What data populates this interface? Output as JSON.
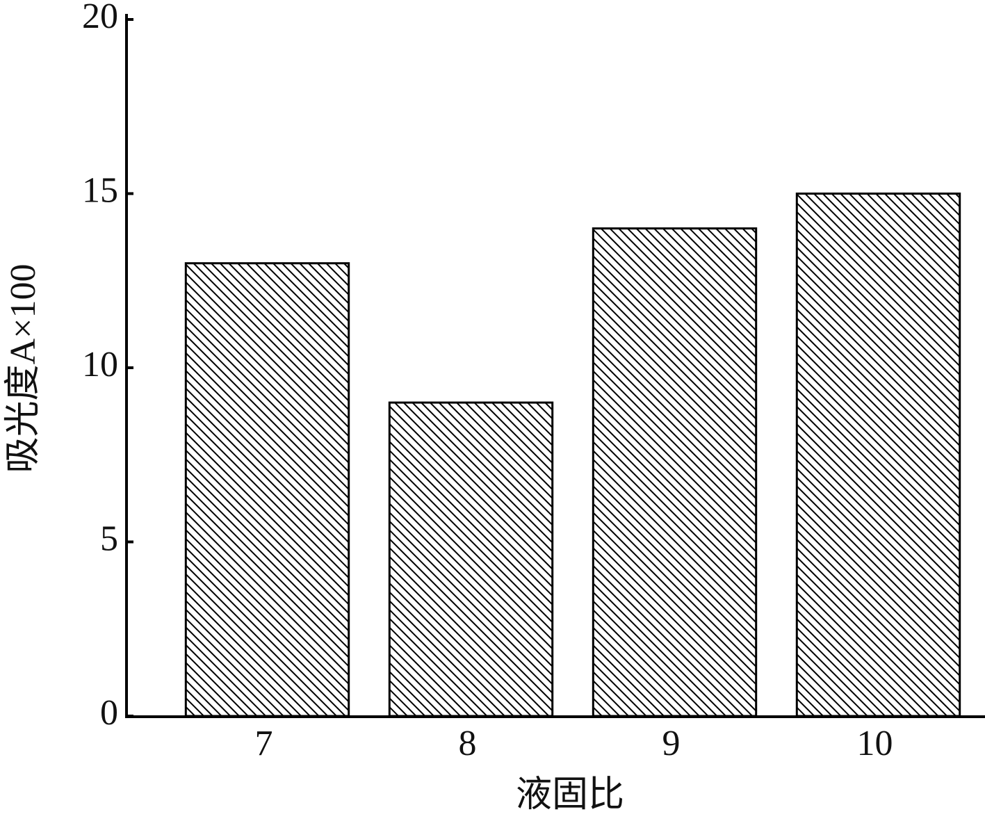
{
  "chart_data": {
    "type": "bar",
    "x_label": "液固比",
    "y_label": "吸光度A×100",
    "categories": [
      "7",
      "8",
      "9",
      "10"
    ],
    "values": [
      13,
      9,
      14,
      15
    ],
    "ylim": [
      0,
      20
    ],
    "yticks": [
      0,
      5,
      10,
      15,
      20
    ],
    "grid": false
  }
}
